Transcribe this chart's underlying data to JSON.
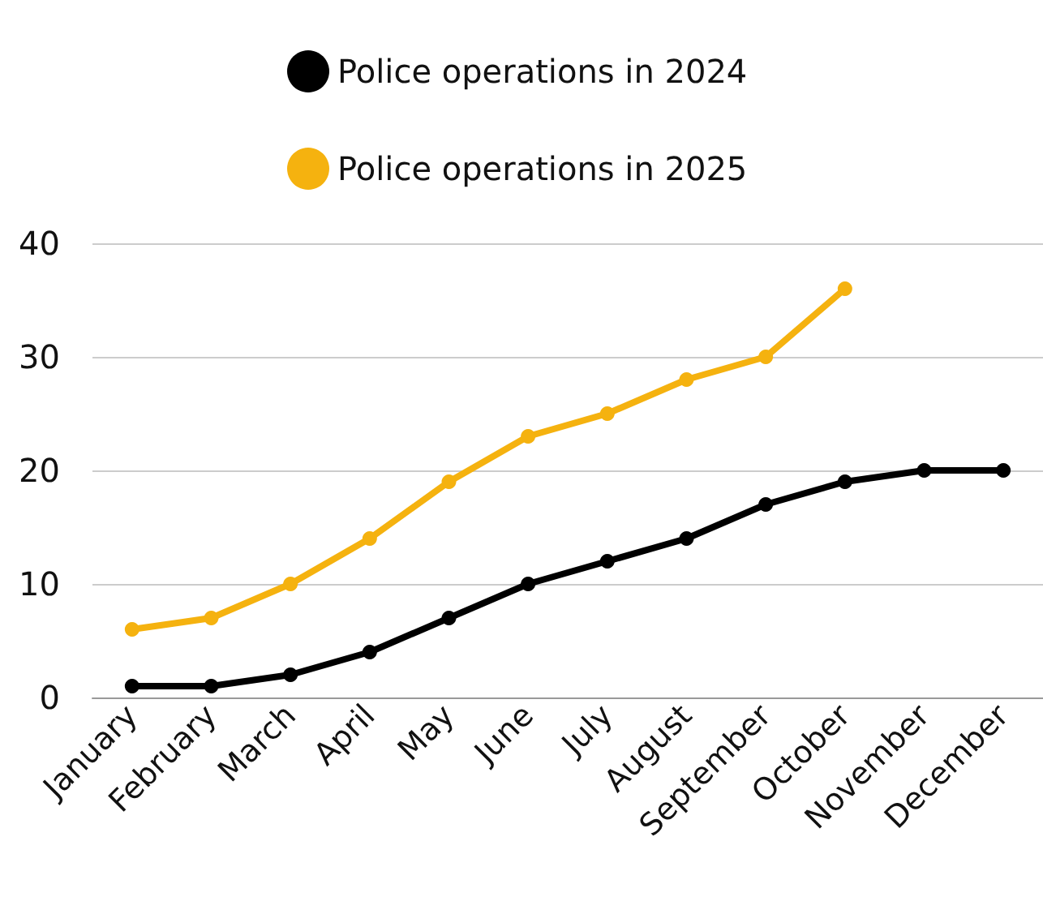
{
  "chart_data": {
    "type": "line",
    "categories": [
      "January",
      "February",
      "March",
      "April",
      "May",
      "June",
      "July",
      "August",
      "September",
      "October",
      "November",
      "December"
    ],
    "series": [
      {
        "name": "Police operations in 2024",
        "color": "#000000",
        "values": [
          1,
          1,
          2,
          4,
          7,
          10,
          12,
          14,
          17,
          19,
          20,
          20
        ]
      },
      {
        "name": "Police operations in 2025",
        "color": "#f5b20f",
        "values": [
          6,
          7,
          10,
          14,
          19,
          23,
          25,
          28,
          30,
          36,
          null,
          null
        ]
      }
    ],
    "ylim": [
      0,
      40
    ],
    "yticks": [
      0,
      10,
      20,
      30,
      40
    ],
    "grid": "y",
    "legend": "top",
    "marker": "circle",
    "line_style": "solid"
  }
}
